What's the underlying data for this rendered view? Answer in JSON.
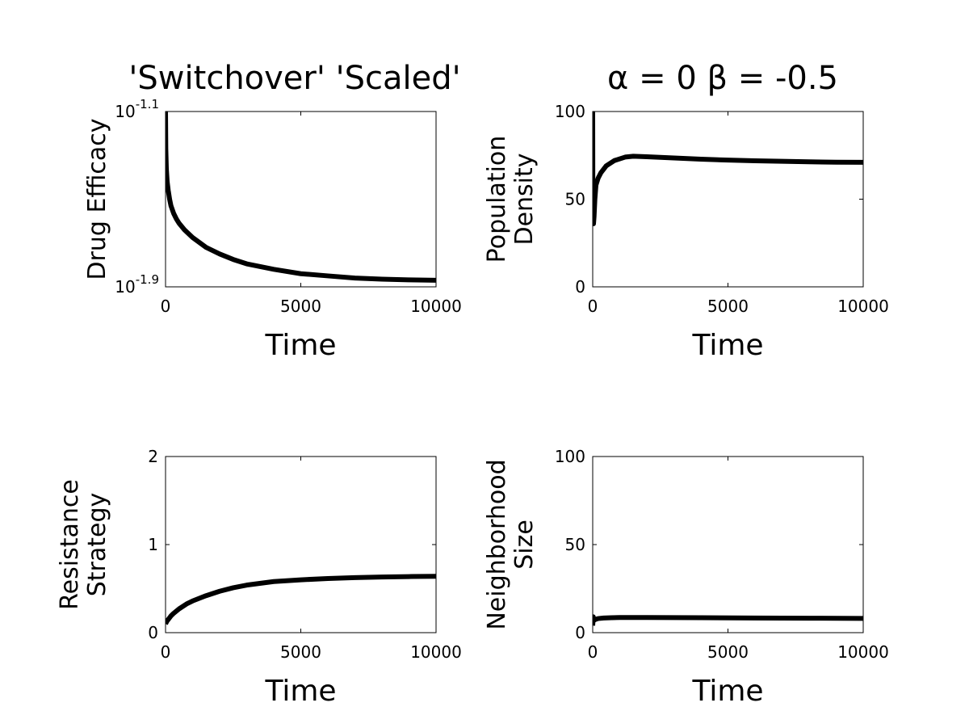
{
  "figure": {
    "title_left": "'Switchover' 'Scaled'",
    "title_right": "α = 0 β = -0.5"
  },
  "chart_data": [
    {
      "type": "line",
      "title": "'Switchover' 'Scaled'",
      "xlabel": "Time",
      "ylabel": [
        "Drug Efficacy"
      ],
      "xlim": [
        0,
        10000
      ],
      "ylim": [
        -1.9,
        -1.1
      ],
      "yscale": "log10",
      "xticks": [
        "0",
        "5000",
        "10000"
      ],
      "yticks": [
        {
          "value": -1.1,
          "base": "10",
          "exp": "-1.1"
        },
        {
          "value": -1.9,
          "base": "10",
          "exp": "-1.9"
        }
      ],
      "grid": false,
      "series": [
        {
          "x": [
            0,
            10,
            30,
            60,
            100,
            150,
            200,
            300,
            400,
            500,
            700,
            1000,
            1500,
            2000,
            2500,
            3000,
            4000,
            5000,
            6000,
            7000,
            8000,
            9000,
            10000
          ],
          "values": [
            -1.1,
            -1.27,
            -1.36,
            -1.42,
            -1.46,
            -1.5,
            -1.53,
            -1.565,
            -1.59,
            -1.61,
            -1.64,
            -1.675,
            -1.72,
            -1.75,
            -1.775,
            -1.795,
            -1.82,
            -1.84,
            -1.85,
            -1.86,
            -1.865,
            -1.868,
            -1.87
          ]
        }
      ]
    },
    {
      "type": "line",
      "title": "α = 0 β = -0.5",
      "xlabel": "Time",
      "ylabel": [
        "Population",
        "Density"
      ],
      "xlim": [
        0,
        10000
      ],
      "ylim": [
        0,
        100
      ],
      "xticks": [
        "0",
        "5000",
        "10000"
      ],
      "yticks": [
        0,
        50,
        100
      ],
      "grid": false,
      "series": [
        {
          "x": [
            0,
            5,
            15,
            30,
            50,
            80,
            120,
            200,
            300,
            500,
            800,
            1200,
            1500,
            2000,
            3000,
            4000,
            5000,
            6000,
            7000,
            8000,
            9000,
            10000
          ],
          "values": [
            100,
            60,
            38,
            36,
            40,
            50,
            58,
            62,
            65,
            69,
            72,
            74,
            74.5,
            74.2,
            73.5,
            72.8,
            72.3,
            71.9,
            71.6,
            71.3,
            71.1,
            71
          ]
        }
      ]
    },
    {
      "type": "line",
      "xlabel": "Time",
      "ylabel": [
        "Resistance",
        "Strategy"
      ],
      "xlim": [
        0,
        10000
      ],
      "ylim": [
        0,
        2
      ],
      "xticks": [
        "0",
        "5000",
        "10000"
      ],
      "yticks": [
        0,
        1,
        2
      ],
      "grid": false,
      "series": [
        {
          "x": [
            0,
            50,
            100,
            200,
            300,
            500,
            800,
            1000,
            1500,
            2000,
            2500,
            3000,
            4000,
            5000,
            6000,
            7000,
            8000,
            9000,
            10000
          ],
          "values": [
            0.1,
            0.13,
            0.15,
            0.19,
            0.22,
            0.27,
            0.33,
            0.36,
            0.42,
            0.47,
            0.51,
            0.54,
            0.58,
            0.6,
            0.615,
            0.625,
            0.632,
            0.637,
            0.64
          ]
        }
      ]
    },
    {
      "type": "line",
      "xlabel": "Time",
      "ylabel": [
        "Neighborhood",
        "Size"
      ],
      "xlim": [
        0,
        10000
      ],
      "ylim": [
        0,
        100
      ],
      "xticks": [
        "0",
        "5000",
        "10000"
      ],
      "yticks": [
        0,
        50,
        100
      ],
      "grid": false,
      "series": [
        {
          "x": [
            0,
            20,
            50,
            100,
            200,
            400,
            700,
            1000,
            2000,
            4000,
            6000,
            8000,
            10000
          ],
          "values": [
            4,
            9,
            7,
            7.5,
            8,
            8.3,
            8.5,
            8.6,
            8.6,
            8.5,
            8.3,
            8.2,
            8.1
          ]
        }
      ]
    }
  ]
}
